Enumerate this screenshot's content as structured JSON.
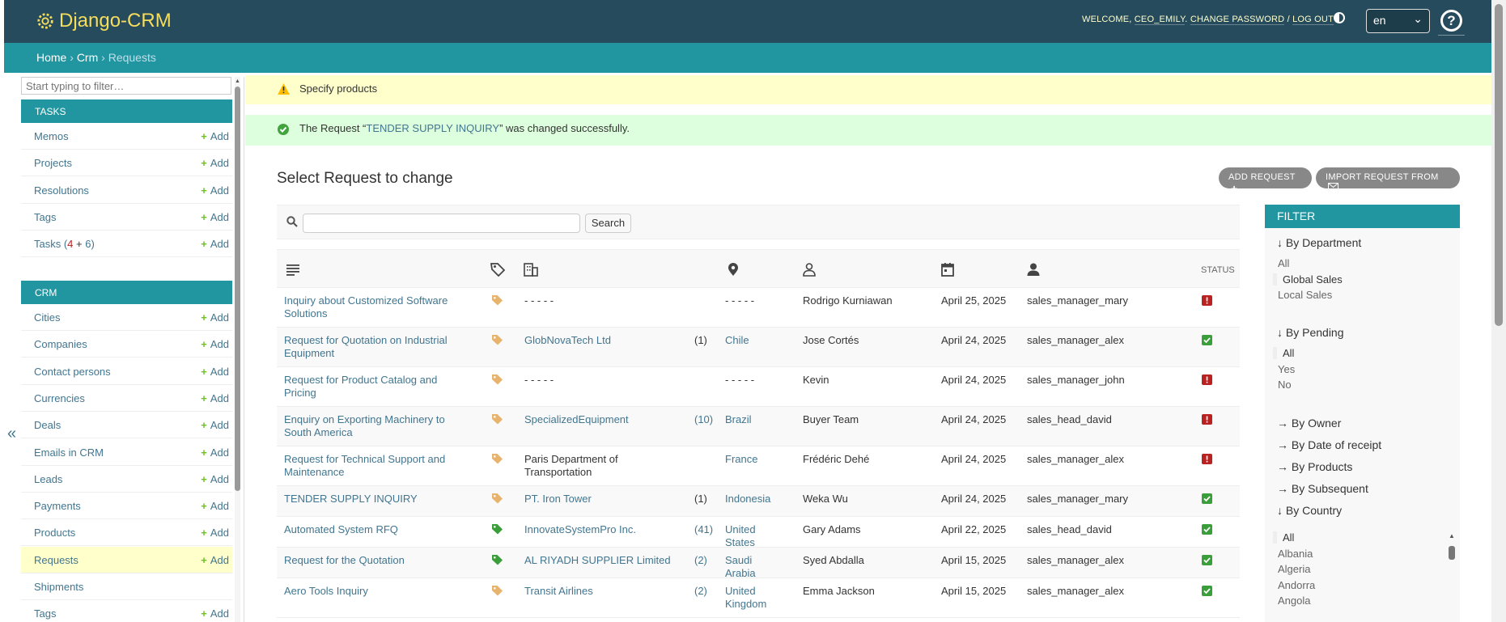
{
  "header": {
    "brand": "Django-CRM",
    "welcome": "WELCOME,",
    "username": "CEO_EMILY",
    "change_password": "CHANGE PASSWORD",
    "separator": "/",
    "logout": "LOG OUT",
    "language": "en",
    "help": "?"
  },
  "breadcrumbs": {
    "home": "Home",
    "app": "Crm",
    "current": "Requests",
    "sep": "›"
  },
  "sidebar": {
    "filter_placeholder": "Start typing to filter…",
    "add_label": "Add",
    "collapse": "«",
    "tasks": {
      "caption": "TASKS",
      "items": [
        {
          "label": "Memos",
          "has_add": true
        },
        {
          "label": "Projects",
          "has_add": true
        },
        {
          "label": "Resolutions",
          "has_add": true
        },
        {
          "label": "Tags",
          "has_add": true
        },
        {
          "label": "Tasks (",
          "badge_a": "4",
          "plus": " + ",
          "badge_b": "6",
          "close": ")",
          "has_add": true
        }
      ]
    },
    "crm": {
      "caption": "CRM",
      "items": [
        {
          "label": "Cities",
          "has_add": true
        },
        {
          "label": "Companies",
          "has_add": true
        },
        {
          "label": "Contact persons",
          "has_add": true
        },
        {
          "label": "Currencies",
          "has_add": true
        },
        {
          "label": "Deals",
          "has_add": true
        },
        {
          "label": "Emails in CRM",
          "has_add": true
        },
        {
          "label": "Leads",
          "has_add": true
        },
        {
          "label": "Payments",
          "has_add": true
        },
        {
          "label": "Products",
          "has_add": true
        },
        {
          "label": "Requests",
          "has_add": true,
          "current": true
        },
        {
          "label": "Shipments",
          "has_add": false
        },
        {
          "label": "Tags",
          "has_add": true
        }
      ]
    }
  },
  "messages": {
    "warning": "Specify products",
    "success_prefix": "The Request “",
    "success_link": "TENDER SUPPLY INQUIRY",
    "success_suffix": "” was changed successfully."
  },
  "content": {
    "title": "Select Request to change",
    "add_button": "ADD REQUEST",
    "import_button": "IMPORT REQUEST FROM",
    "search_button": "Search",
    "status_header": "STATUS"
  },
  "rows": [
    {
      "name": "Inquiry about Customized Software Solutions",
      "tag_color": "#e8b46d",
      "company": "- - - - -",
      "company_link": false,
      "count": "",
      "country": "- - - - -",
      "country_link": false,
      "person": "Rodrigo Kurniawan",
      "date": "April 25, 2025",
      "owner": "sales_manager_mary",
      "status": "pending"
    },
    {
      "name": "Request for Quotation on Industrial Equipment",
      "tag_color": "#e8b46d",
      "company": "GlobNovaTech Ltd",
      "company_link": true,
      "count": "(1)",
      "count_link": false,
      "country": "Chile",
      "country_link": true,
      "person": "Jose Cortés",
      "date": "April 24, 2025",
      "owner": "sales_manager_alex",
      "status": "done"
    },
    {
      "name": "Request for Product Catalog and Pricing",
      "tag_color": "#e8b46d",
      "company": "- - - - -",
      "company_link": false,
      "count": "",
      "country": "- - - - -",
      "country_link": false,
      "person": "Kevin",
      "date": "April 24, 2025",
      "owner": "sales_manager_john",
      "status": "pending"
    },
    {
      "name": "Enquiry on Exporting Machinery to South America",
      "tag_color": "#e8b46d",
      "company": "SpecializedEquipment",
      "company_link": true,
      "count": "(10)",
      "count_link": true,
      "country": "Brazil",
      "country_link": true,
      "person": "Buyer Team",
      "date": "April 24, 2025",
      "owner": "sales_head_david",
      "status": "pending"
    },
    {
      "name": "Request for Technical Support and Maintenance",
      "tag_color": "#e8b46d",
      "company": "Paris Department of Transportation",
      "company_link": false,
      "count": "",
      "country": "France",
      "country_link": true,
      "person": "Frédéric Dehé",
      "date": "April 24, 2025",
      "owner": "sales_manager_alex",
      "status": "pending"
    },
    {
      "name": "TENDER SUPPLY INQUIRY",
      "tag_color": "#e8b46d",
      "company": "PT. Iron Tower",
      "company_link": true,
      "count": "(1)",
      "count_link": false,
      "country": "Indonesia",
      "country_link": true,
      "person": "Weka Wu",
      "date": "April 24, 2025",
      "owner": "sales_manager_mary",
      "status": "done"
    },
    {
      "name": "Automated System RFQ",
      "tag_color": "#3a9e3a",
      "company": "InnovateSystemPro Inc.",
      "company_link": true,
      "count": "(41)",
      "count_link": true,
      "country": "United States",
      "country_link": true,
      "person": "Gary Adams",
      "date": "April 22, 2025",
      "owner": "sales_head_david",
      "status": "done"
    },
    {
      "name": "Request for the Quotation",
      "tag_color": "#3a9e3a",
      "company": "AL RIYADH SUPPLIER Limited",
      "company_link": true,
      "count": "(2)",
      "count_link": true,
      "country": "Saudi Arabia",
      "country_link": true,
      "person": "Syed Abdalla",
      "date": "April 15, 2025",
      "owner": "sales_manager_alex",
      "status": "done"
    },
    {
      "name": "Aero Tools Inquiry",
      "tag_color": "#e8b46d",
      "company": "Transit Airlines",
      "company_link": true,
      "count": "(2)",
      "count_link": true,
      "country": "United Kingdom",
      "country_link": true,
      "person": "Emma Jackson",
      "date": "April 15, 2025",
      "owner": "sales_manager_alex",
      "status": "done"
    }
  ],
  "filter": {
    "caption": "FILTER",
    "by_department": "↓ By Department",
    "department_options": [
      "All",
      "Global Sales",
      "Local Sales"
    ],
    "department_selected": "Global Sales",
    "by_pending": "↓ By Pending",
    "pending_options": [
      "All",
      "Yes",
      "No"
    ],
    "pending_selected": "All",
    "by_owner": "→ By Owner",
    "by_date": "→ By Date of receipt",
    "by_products": "→ By Products",
    "by_subsequent": "→ By Subsequent",
    "by_country": "↓ By Country",
    "country_options": [
      "All",
      "Albania",
      "Algeria",
      "Andorra",
      "Angola"
    ],
    "country_selected": "All"
  }
}
